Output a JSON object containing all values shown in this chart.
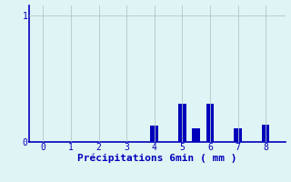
{
  "xlabel": "Précipitations 6min ( mm )",
  "background_color": "#dff4f4",
  "bar_color": "#0000bb",
  "grid_color": "#b0c8c8",
  "spine_color": "#0000bb",
  "xlim": [
    -0.5,
    8.7
  ],
  "ylim": [
    0,
    1.08
  ],
  "xticks": [
    0,
    1,
    2,
    3,
    4,
    5,
    6,
    7,
    8
  ],
  "yticks": [
    0,
    1
  ],
  "bar_positions": [
    4.0,
    5.0,
    5.5,
    6.0,
    7.0,
    8.0
  ],
  "bar_heights": [
    0.13,
    0.3,
    0.11,
    0.3,
    0.11,
    0.14
  ],
  "bar_width": 0.28
}
